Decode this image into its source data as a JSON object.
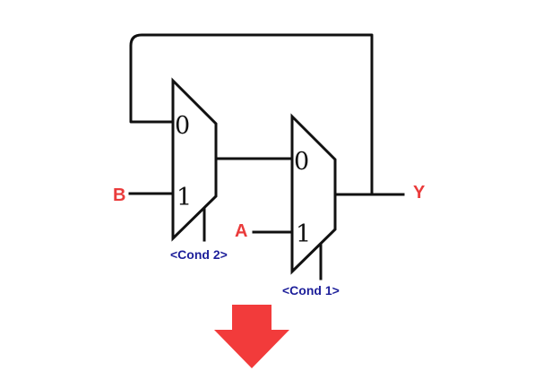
{
  "colors": {
    "io_label": "#ea3b3b",
    "cond_label": "#1d1f9a",
    "arrow": "#f23b3b",
    "wire": "#111111"
  },
  "inputs": {
    "b_label": "B",
    "a_label": "A"
  },
  "output": {
    "y_label": "Y"
  },
  "mux2": {
    "input0_label": "0",
    "input1_label": "1",
    "select_label": "<Cond 2>"
  },
  "mux1": {
    "input0_label": "0",
    "input1_label": "1",
    "select_label": "<Cond 1>"
  },
  "arrow_icon": "arrow-down-icon"
}
